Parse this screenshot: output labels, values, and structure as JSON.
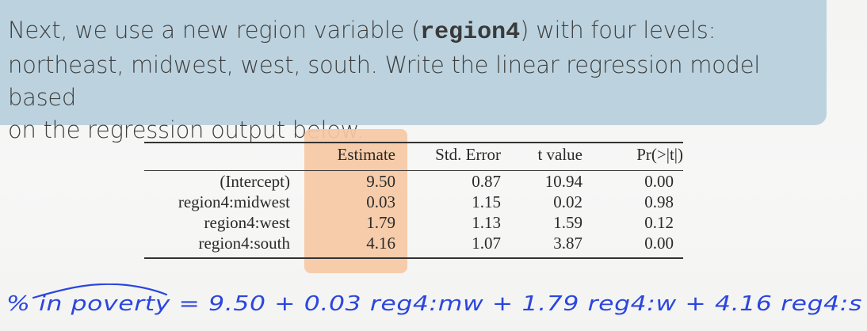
{
  "prompt": {
    "line1_before": "Next, we use a new region variable (",
    "line1_code": "region4",
    "line1_after": ") with four levels:",
    "line2": "northeast, midwest, west, south. Write the linear regression model based",
    "line3": "on the regression output below."
  },
  "regression_table": {
    "headers": [
      "Estimate",
      "Std. Error",
      "t value",
      "Pr(>|t|)"
    ],
    "rows": [
      {
        "label": "(Intercept)",
        "values": [
          "9.50",
          "0.87",
          "10.94",
          "0.00"
        ]
      },
      {
        "label": "region4:midwest",
        "values": [
          "0.03",
          "1.15",
          "0.02",
          "0.98"
        ]
      },
      {
        "label": "region4:west",
        "values": [
          "1.79",
          "1.13",
          "1.59",
          "0.12"
        ]
      },
      {
        "label": "region4:south",
        "values": [
          "4.16",
          "1.07",
          "3.87",
          "0.00"
        ]
      }
    ]
  },
  "handwritten_equation": "% in poverty = 9.50 + 0.03 reg4:mw + 1.79 reg4:w + 4.16 reg4:s",
  "colors": {
    "prompt_bg": "#bcd3df",
    "highlight": "#f5c8a3",
    "ink": "#2b46e0"
  }
}
